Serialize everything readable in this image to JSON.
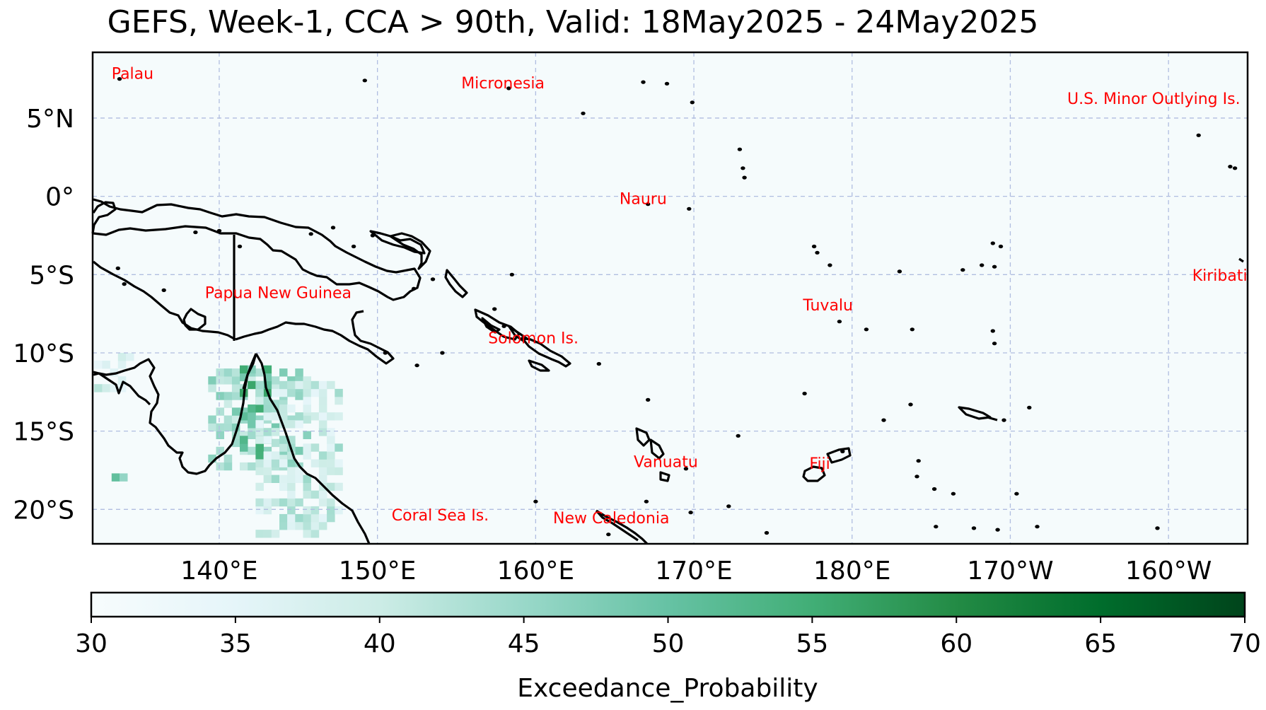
{
  "title": "GEFS, Week-1, CCA > 90th, Valid: 18May2025 - 24May2025",
  "map": {
    "lon_min": 132,
    "lon_max": 205,
    "lat_min": -22.2,
    "lat_max": 9.2,
    "lat_ticks": [
      {
        "lat": 5,
        "label": "5°N"
      },
      {
        "lat": 0,
        "label": "0°"
      },
      {
        "lat": -5,
        "label": "5°S"
      },
      {
        "lat": -10,
        "label": "10°S"
      },
      {
        "lat": -15,
        "label": "15°S"
      },
      {
        "lat": -20,
        "label": "20°S"
      }
    ],
    "lon_ticks": [
      {
        "lon": 140,
        "label": "140°E"
      },
      {
        "lon": 150,
        "label": "150°E"
      },
      {
        "lon": 160,
        "label": "160°E"
      },
      {
        "lon": 170,
        "label": "170°E"
      },
      {
        "lon": 180,
        "label": "180°E"
      },
      {
        "lon": 190,
        "label": "170°W"
      },
      {
        "lon": 200,
        "label": "160°W"
      }
    ],
    "gridlines": true,
    "region_labels": [
      {
        "name": "Palau",
        "lon": 133.2,
        "lat": 7.5
      },
      {
        "name": "Micronesia",
        "lon": 155.3,
        "lat": 6.9
      },
      {
        "name": "U.S. Minor Outlying Is.",
        "lon": 193.6,
        "lat": 5.9
      },
      {
        "name": "Nauru",
        "lon": 165.3,
        "lat": -0.5
      },
      {
        "name": "Papua New Guinea",
        "lon": 139.1,
        "lat": -6.5
      },
      {
        "name": "Kiribati",
        "lon": 201.5,
        "lat": -5.4
      },
      {
        "name": "Tuvalu",
        "lon": 176.9,
        "lat": -7.3
      },
      {
        "name": "Solomon Is.",
        "lon": 157.0,
        "lat": -9.4
      },
      {
        "name": "Vanuatu",
        "lon": 166.2,
        "lat": -17.3
      },
      {
        "name": "Fiji",
        "lon": 177.3,
        "lat": -17.4
      },
      {
        "name": "Coral Sea Is.",
        "lon": 150.9,
        "lat": -20.7
      },
      {
        "name": "New Caledonia",
        "lon": 161.1,
        "lat": -20.9
      }
    ],
    "colors": {
      "background": "#f5fbfc",
      "coastline": "#000000",
      "gridline": "#b0bde0",
      "label": "#ff0000"
    }
  },
  "colorbar": {
    "label": "Exceedance_Probability",
    "min": 30,
    "max": 70,
    "ticks": [
      "30",
      "35",
      "40",
      "45",
      "50",
      "55",
      "60",
      "65",
      "70"
    ],
    "colormap": "BuGn",
    "stops": [
      "#f7fcfd",
      "#e5f5f9",
      "#ccece6",
      "#99d8c9",
      "#66c2a4",
      "#41ae76",
      "#238b45",
      "#006d2c",
      "#00441b"
    ]
  },
  "chart_data": {
    "type": "heatmap",
    "title": "GEFS, Week-1, CCA > 90th, Valid: 18May2025 - 24May2025",
    "xlabel": "",
    "ylabel": "",
    "value_label": "Exceedance_Probability",
    "vmin": 30,
    "vmax": 70,
    "xlim": [
      132,
      205
    ],
    "ylim": [
      -22.2,
      9.2
    ],
    "grid": true,
    "regions": [
      {
        "lon_range": [
          132.1,
          134.2
        ],
        "lat_range": [
          -12.5,
          -10.3
        ],
        "approx_value": 38
      },
      {
        "lon_range": [
          139.3,
          145.5
        ],
        "lat_range": [
          -17.5,
          -11.2
        ],
        "approx_value": 44
      },
      {
        "lon_range": [
          141.3,
          143.3
        ],
        "lat_range": [
          -16.8,
          -11.2
        ],
        "approx_value": 52
      },
      {
        "lon_range": [
          142.3,
          147.5
        ],
        "lat_range": [
          -21.8,
          -12.0
        ],
        "approx_value": 40
      },
      {
        "lon_range": [
          133.2,
          133.8
        ],
        "lat_range": [
          -18.2,
          -17.7
        ],
        "approx_value": 50
      }
    ]
  }
}
